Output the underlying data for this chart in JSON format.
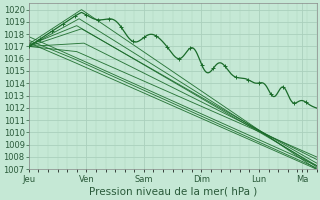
{
  "bg_color": "#c5e8d5",
  "grid_color": "#aad0bc",
  "line_color": "#1a6b2a",
  "xlabel": "Pression niveau de la mer( hPa )",
  "ylim": [
    1007,
    1020.5
  ],
  "yticks": [
    1007,
    1008,
    1009,
    1010,
    1011,
    1012,
    1013,
    1014,
    1015,
    1016,
    1017,
    1018,
    1019,
    1020
  ],
  "xtick_labels": [
    "Jeu",
    "Ven",
    "Sam",
    "Dim",
    "Lun",
    "Ma"
  ],
  "xtick_positions": [
    0,
    24,
    48,
    72,
    96,
    114
  ],
  "xlim": [
    0,
    120
  ],
  "tick_fontsize": 6,
  "xlabel_fontsize": 7.5
}
